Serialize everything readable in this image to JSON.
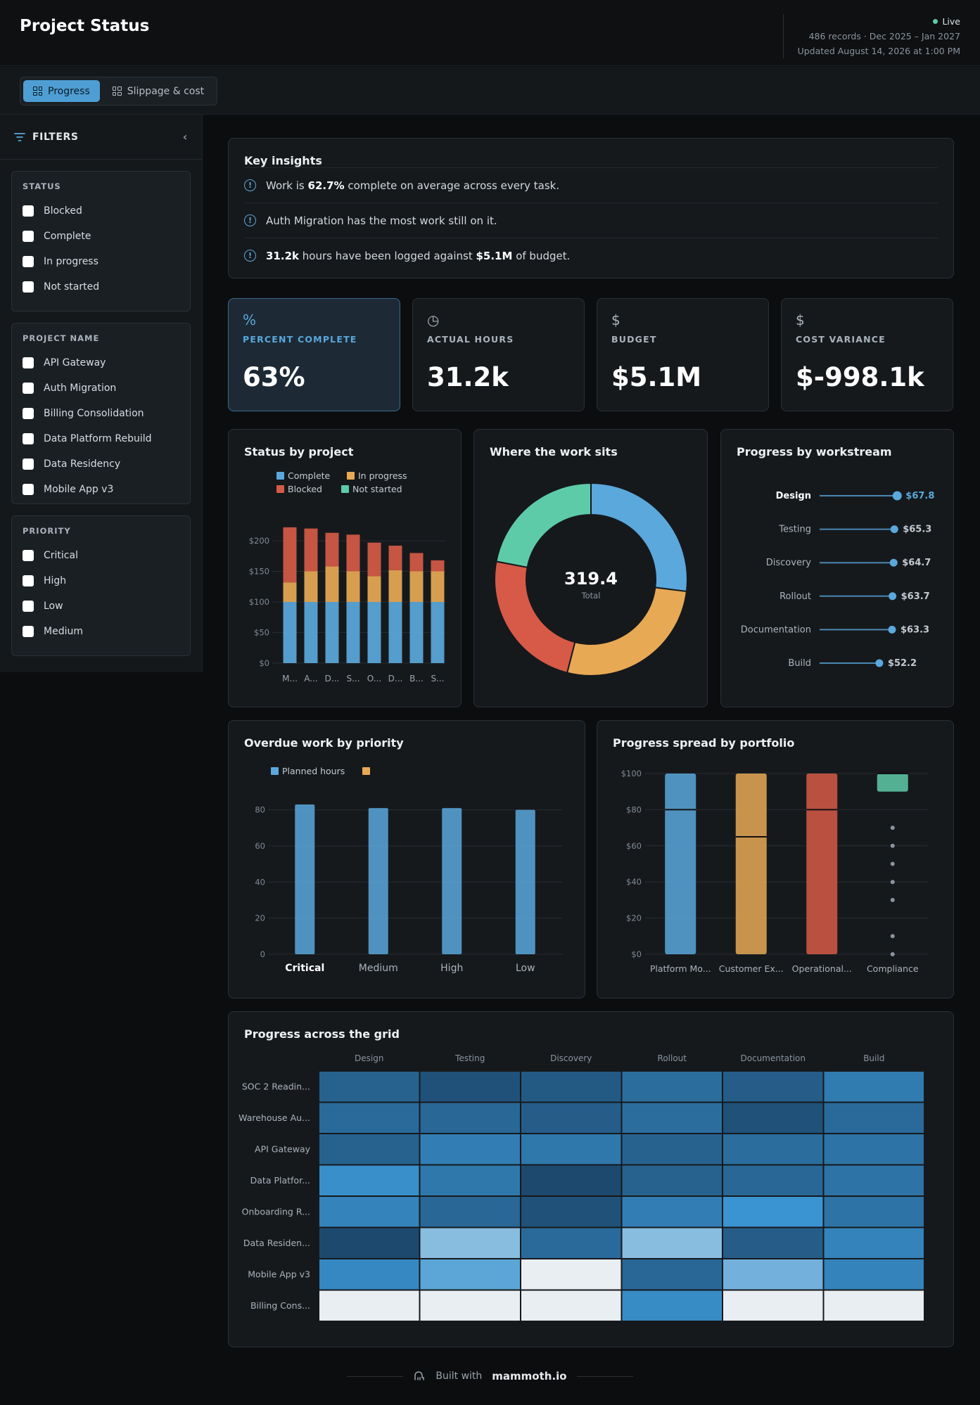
{
  "header": {
    "title": "Project Status",
    "live_label": "Live",
    "records": "486 records · Dec 2025 – Jan 2027",
    "updated": "Updated August 14, 2026 at 1:00 PM"
  },
  "tabs": [
    {
      "label": "Progress",
      "active": true
    },
    {
      "label": "Slippage & cost",
      "active": false
    }
  ],
  "sidebar": {
    "title": "FILTERS",
    "groups": [
      {
        "title": "STATUS",
        "options": [
          "Blocked",
          "Complete",
          "In progress",
          "Not started"
        ]
      },
      {
        "title": "PROJECT NAME",
        "options": [
          "API Gateway",
          "Auth Migration",
          "Billing Consolidation",
          "Data Platform Rebuild",
          "Data Residency",
          "Mobile App v3"
        ]
      },
      {
        "title": "PRIORITY",
        "options": [
          "Critical",
          "High",
          "Low",
          "Medium"
        ]
      }
    ]
  },
  "insights": {
    "title": "Key insights",
    "items": [
      {
        "pre": "Work is ",
        "b1": "62.7%",
        "mid": " complete on average across every task.",
        "b2": "",
        "post": ""
      },
      {
        "pre": "Auth Migration has the most work still on it.",
        "b1": "",
        "mid": "",
        "b2": "",
        "post": ""
      },
      {
        "pre": "",
        "b1": "31.2k",
        "mid": " hours have been logged against ",
        "b2": "$5.1M",
        "post": " of budget."
      }
    ]
  },
  "kpis": [
    {
      "icon": "%",
      "label": "PERCENT COMPLETE",
      "value": "63%"
    },
    {
      "icon": "◷",
      "label": "ACTUAL HOURS",
      "value": "31.2k"
    },
    {
      "icon": "$",
      "label": "BUDGET",
      "value": "$5.1M"
    },
    {
      "icon": "$",
      "label": "COST VARIANCE",
      "value": "$-998.1k"
    }
  ],
  "colors": {
    "complete": "#5aa8dc",
    "in_progress": "#e8a955",
    "blocked": "#d65a47",
    "not_started": "#5ecba8"
  },
  "chart_data": [
    {
      "type": "bar",
      "title": "Status by project",
      "stacked": true,
      "categories": [
        "M...",
        "A...",
        "D...",
        "S...",
        "O...",
        "D...",
        "B...",
        "S..."
      ],
      "ylim": [
        0,
        200
      ],
      "yticks": [
        "$0",
        "$50",
        "$100",
        "$150",
        "$200"
      ],
      "series": [
        {
          "name": "Complete",
          "values": [
            100,
            100,
            100,
            100,
            100,
            100,
            100,
            100
          ]
        },
        {
          "name": "In progress",
          "values": [
            32,
            50,
            58,
            50,
            42,
            52,
            50,
            50
          ]
        },
        {
          "name": "Blocked",
          "values": [
            90,
            70,
            55,
            60,
            55,
            40,
            30,
            18
          ]
        },
        {
          "name": "Not started",
          "values": [
            0,
            0,
            0,
            0,
            0,
            0,
            0,
            0
          ]
        }
      ]
    },
    {
      "type": "pie",
      "title": "Where the work sits",
      "center_value": "319.4",
      "center_label": "Total",
      "slices": [
        {
          "name": "Complete",
          "value": 86.2
        },
        {
          "name": "In progress",
          "value": 86.2
        },
        {
          "name": "Blocked",
          "value": 76.7
        },
        {
          "name": "Not started",
          "value": 70.3
        }
      ]
    },
    {
      "type": "scatter",
      "title": "Progress by workstream",
      "categories": [
        "Design",
        "Testing",
        "Discovery",
        "Rollout",
        "Documentation",
        "Build"
      ],
      "values": [
        67.8,
        65.3,
        64.7,
        63.7,
        63.3,
        52.2
      ],
      "labels": [
        "$67.8",
        "$65.3",
        "$64.7",
        "$63.7",
        "$63.3",
        "$52.2"
      ],
      "xlim": [
        0,
        75
      ]
    },
    {
      "type": "bar",
      "title": "Overdue work by priority",
      "categories": [
        "Critical",
        "Medium",
        "High",
        "Low"
      ],
      "series": [
        {
          "name": "Planned hours",
          "values": [
            83,
            81,
            81,
            80
          ]
        },
        {
          "values": [
            0,
            0,
            0,
            0
          ]
        }
      ],
      "ylim": [
        0,
        90
      ],
      "yticks": [
        "0",
        "20",
        "40",
        "60",
        "80"
      ]
    },
    {
      "type": "box",
      "title": "Progress spread by portfolio",
      "categories": [
        "Platform Mo...",
        "Customer Ex...",
        "Operational...",
        "Compliance"
      ],
      "ylim": [
        0,
        100
      ],
      "yticks": [
        "$0",
        "$20",
        "$40",
        "$60",
        "$80",
        "$100"
      ],
      "boxes": [
        {
          "low": 0,
          "high": 100,
          "median": 80,
          "outliers": []
        },
        {
          "low": 0,
          "high": 100,
          "median": 65,
          "outliers": []
        },
        {
          "low": 0,
          "high": 100,
          "median": 80,
          "outliers": []
        },
        {
          "low": 90,
          "high": 100,
          "median": 100,
          "outliers": [
            0,
            10,
            30,
            40,
            50,
            60,
            70
          ]
        }
      ]
    },
    {
      "type": "heatmap",
      "title": "Progress across the grid",
      "columns": [
        "Design",
        "Testing",
        "Discovery",
        "Rollout",
        "Documentation",
        "Build"
      ],
      "rows": [
        "SOC 2 Readin...",
        "Warehouse Au...",
        "API Gateway",
        "Data Platfor...",
        "Onboarding R...",
        "Data Residen...",
        "Mobile App v3",
        "Billing Cons..."
      ],
      "values": [
        [
          55,
          45,
          50,
          62,
          52,
          70
        ],
        [
          60,
          58,
          52,
          62,
          45,
          60
        ],
        [
          55,
          72,
          68,
          55,
          62,
          65
        ],
        [
          82,
          68,
          40,
          55,
          58,
          65
        ],
        [
          75,
          58,
          45,
          72,
          85,
          65
        ],
        [
          40,
          92,
          60,
          92,
          52,
          75
        ],
        [
          78,
          88,
          100,
          58,
          90,
          75
        ],
        [
          100,
          100,
          100,
          80,
          100,
          100
        ]
      ]
    }
  ],
  "footer": {
    "built_with": "Built with",
    "brand": "mammoth.io"
  }
}
